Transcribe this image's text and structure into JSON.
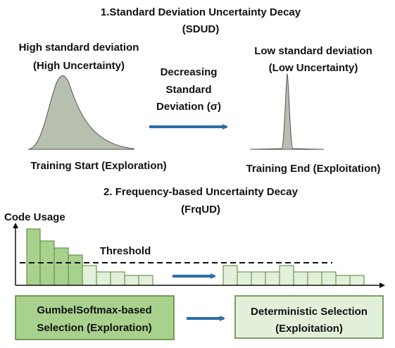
{
  "sdud": {
    "title": "1.Standard Deviation Uncertainty Decay",
    "subtitle": "(SDUD)",
    "high_label": [
      "High standard deviation",
      "(High Uncertainty)"
    ],
    "arrow_label": [
      "Decreasing",
      "Standard",
      "Deviation (σ)"
    ],
    "low_label": [
      "Low standard deviation",
      "(Low Uncertainty)"
    ],
    "start_caption": "Training Start (Exploration)",
    "end_caption": "Training End (Exploitation)"
  },
  "frqud": {
    "title": "2. Frequency-based Uncertainty Decay",
    "subtitle": "(FrqUD)",
    "y_axis_label": "Code Usage",
    "threshold_label": "Threshold",
    "left_box": [
      "GumbelSoftmax-based",
      "Selection (Exploration)"
    ],
    "right_box": [
      "Deterministic Selection",
      "(Exploitation)"
    ]
  }
}
